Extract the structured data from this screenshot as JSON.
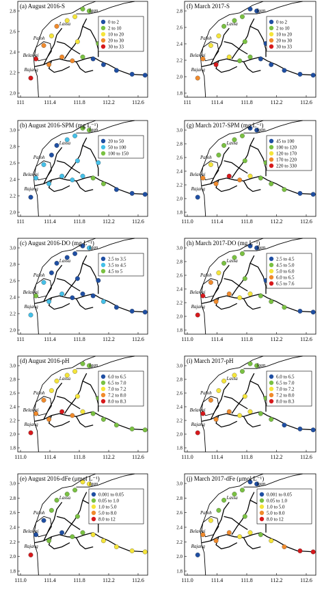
{
  "panels": [
    {
      "title": "(a) August 2016-S",
      "xticks": [
        "111",
        "111.4",
        "111.8",
        "112.2",
        "112.6"
      ],
      "yticks": [
        "2.8",
        "2.6",
        "2.4",
        "2.2",
        "2.0"
      ],
      "legend": [
        {
          "label": "0  to  2",
          "color": "#1f4fa3"
        },
        {
          "label": "2  to  10",
          "color": "#7ac142"
        },
        {
          "label": "10  to  20",
          "color": "#f5e53a"
        },
        {
          "label": "20  to  30",
          "color": "#f08a2c"
        },
        {
          "label": "30  to  33",
          "color": "#d7191c"
        }
      ],
      "places": [
        "Igan",
        "Lassa",
        "Paloh",
        "Belawai",
        "Rajang"
      ]
    },
    {
      "title": "(f) March 2017-S",
      "xticks": [
        "111",
        "111.4",
        "111.8",
        "112.2",
        "112.6"
      ],
      "yticks": [
        "2.8",
        "2.6",
        "2.4",
        "2.2",
        "2.0",
        "1.8"
      ],
      "legend": [
        {
          "label": "0  to  2",
          "color": "#1f4fa3"
        },
        {
          "label": "2  to  10",
          "color": "#7ac142"
        },
        {
          "label": "10  to  20",
          "color": "#f5e53a"
        },
        {
          "label": "20  to  30",
          "color": "#f08a2c"
        },
        {
          "label": "30  to  33",
          "color": "#d7191c"
        }
      ],
      "places": [
        "Igan",
        "Lassa",
        "Paloh",
        "Belawai",
        "Rajang"
      ]
    },
    {
      "title": "(b) August 2016-SPM (mg L⁻¹)",
      "xticks": [
        "111",
        "111.4",
        "111.8",
        "112.2",
        "112.6"
      ],
      "yticks": [
        "3.0",
        "2.8",
        "2.6",
        "2.4",
        "2.2",
        "2.0"
      ],
      "legend": [
        {
          "label": "20  to  50",
          "color": "#1f4fa3"
        },
        {
          "label": "50  to  100",
          "color": "#45c0e8"
        },
        {
          "label": "100  to  150",
          "color": "#7ac142"
        }
      ],
      "places": [
        "Igan",
        "Lassa",
        "Paloh",
        "Belawai",
        "Rajang"
      ]
    },
    {
      "title": "(g) March 2017-SPM (mg L⁻¹)",
      "xticks": [
        "111.0",
        "111.4",
        "111.8",
        "112.2",
        "112.6"
      ],
      "yticks": [
        "3.0",
        "2.8",
        "2.6",
        "2.4",
        "2.2",
        "2.0",
        "1.8"
      ],
      "legend": [
        {
          "label": "45  to  100",
          "color": "#1f4fa3"
        },
        {
          "label": "100  to  120",
          "color": "#7ac142"
        },
        {
          "label": "120  to  170",
          "color": "#f5e53a"
        },
        {
          "label": "170  to  220",
          "color": "#f08a2c"
        },
        {
          "label": "220  to  330",
          "color": "#d7191c"
        }
      ],
      "places": [
        "Igan",
        "Lassa",
        "Paloh",
        "Belawai",
        "Rajang"
      ]
    },
    {
      "title": "(c) August 2016-DO (mg L⁻¹)",
      "xticks": [
        "111",
        "111.4",
        "111.8",
        "112.2",
        "112.6"
      ],
      "yticks": [
        "3.0",
        "2.8",
        "2.6",
        "2.4",
        "2.2",
        "2.0"
      ],
      "legend": [
        {
          "label": "2.5  to  3.5",
          "color": "#1f4fa3"
        },
        {
          "label": "3.5  to  4.5",
          "color": "#45c0e8"
        },
        {
          "label": "4.5  to  5",
          "color": "#7ac142"
        }
      ],
      "places": [
        "Igan",
        "Lassa",
        "Paloh",
        "Belawai",
        "Rajang"
      ]
    },
    {
      "title": "(h) March 2017-DO (mg L⁻¹)",
      "xticks": [
        "111.0",
        "111.4",
        "111.8",
        "112.2",
        "112.6"
      ],
      "yticks": [
        "3.0",
        "2.8",
        "2.6",
        "2.4",
        "2.2",
        "2.0",
        "1.8"
      ],
      "legend": [
        {
          "label": "2.5  to  4.5",
          "color": "#1f4fa3"
        },
        {
          "label": "4.5  to  5.0",
          "color": "#7ac142"
        },
        {
          "label": "5.0  to  6.0",
          "color": "#f5e53a"
        },
        {
          "label": "6.0  to  6.5",
          "color": "#f08a2c"
        },
        {
          "label": "6.5  to  7.6",
          "color": "#d7191c"
        }
      ],
      "places": [
        "Igan",
        "Lassa",
        "Paloh",
        "Belawai",
        "Rajang"
      ]
    },
    {
      "title": "(d) August 2016-pH",
      "xticks": [
        "111.0",
        "111.4",
        "111.8",
        "112.2",
        "112.6"
      ],
      "yticks": [
        "3.0",
        "2.8",
        "2.6",
        "2.4",
        "2.2",
        "2.0",
        "1.8"
      ],
      "legend": [
        {
          "label": "6.0  to  6.5",
          "color": "#1f4fa3"
        },
        {
          "label": "6.5  to  7.0",
          "color": "#7ac142"
        },
        {
          "label": "7.0  to  7.2",
          "color": "#f5e53a"
        },
        {
          "label": "7.2  to  8.0",
          "color": "#f08a2c"
        },
        {
          "label": "8.0  to  8.3",
          "color": "#d7191c"
        }
      ],
      "places": [
        "Igan",
        "Lassa",
        "Paloh",
        "Belawai",
        "Rajang"
      ]
    },
    {
      "title": "(i) March 2017-pH",
      "xticks": [
        "111.0",
        "111.4",
        "111.8",
        "112.2",
        "112.6"
      ],
      "yticks": [
        "3.0",
        "2.8",
        "2.6",
        "2.4",
        "2.2",
        "2.0",
        "1.8"
      ],
      "legend": [
        {
          "label": "6.0  to  6.5",
          "color": "#1f4fa3"
        },
        {
          "label": "6.5  to  7.0",
          "color": "#7ac142"
        },
        {
          "label": "7.0  to  7.2",
          "color": "#f5e53a"
        },
        {
          "label": "7.2  to  8.0",
          "color": "#f08a2c"
        },
        {
          "label": "8.0  to  8.3",
          "color": "#d7191c"
        }
      ],
      "places": [
        "Igan",
        "Lassa",
        "Paloh",
        "Belawai",
        "Rajang"
      ]
    },
    {
      "title": "(e) August 2016-dFe (μmol L⁻¹)",
      "xticks": [
        "111.0",
        "111.4",
        "111.8",
        "112.2",
        "112.6"
      ],
      "yticks": [
        "3.0",
        "2.8",
        "2.6",
        "2.4",
        "2.2",
        "2.0",
        "1.8"
      ],
      "legend": [
        {
          "label": "0.001  to  0.05",
          "color": "#1f4fa3"
        },
        {
          "label": "0.05  to  1.0",
          "color": "#7ac142"
        },
        {
          "label": "1.0  to  5.0",
          "color": "#f5e53a"
        },
        {
          "label": "5.0  to  8.0",
          "color": "#f08a2c"
        },
        {
          "label": "8.0  to  12",
          "color": "#d7191c"
        }
      ],
      "places": [
        "Igan",
        "Lassa",
        "Paloh",
        "Belawai",
        "Rajang"
      ]
    },
    {
      "title": "(j) March 2017-dFe (μmol L⁻¹)",
      "xticks": [
        "111.0",
        "111.4",
        "111.8",
        "112.2",
        "112.6"
      ],
      "yticks": [
        "3.0",
        "2.8",
        "2.6",
        "2.4",
        "2.2",
        "2.0",
        "1.8"
      ],
      "legend": [
        {
          "label": "0.001  to  0.05",
          "color": "#1f4fa3"
        },
        {
          "label": "0.05  to  1.0",
          "color": "#7ac142"
        },
        {
          "label": "1.0  to  5.0",
          "color": "#f5e53a"
        },
        {
          "label": "5.0  to  8.0",
          "color": "#f08a2c"
        },
        {
          "label": "8.0  to  12",
          "color": "#d7191c"
        }
      ],
      "places": [
        "Igan",
        "Lassa",
        "Paloh",
        "Belawai",
        "Rajang"
      ]
    }
  ]
}
